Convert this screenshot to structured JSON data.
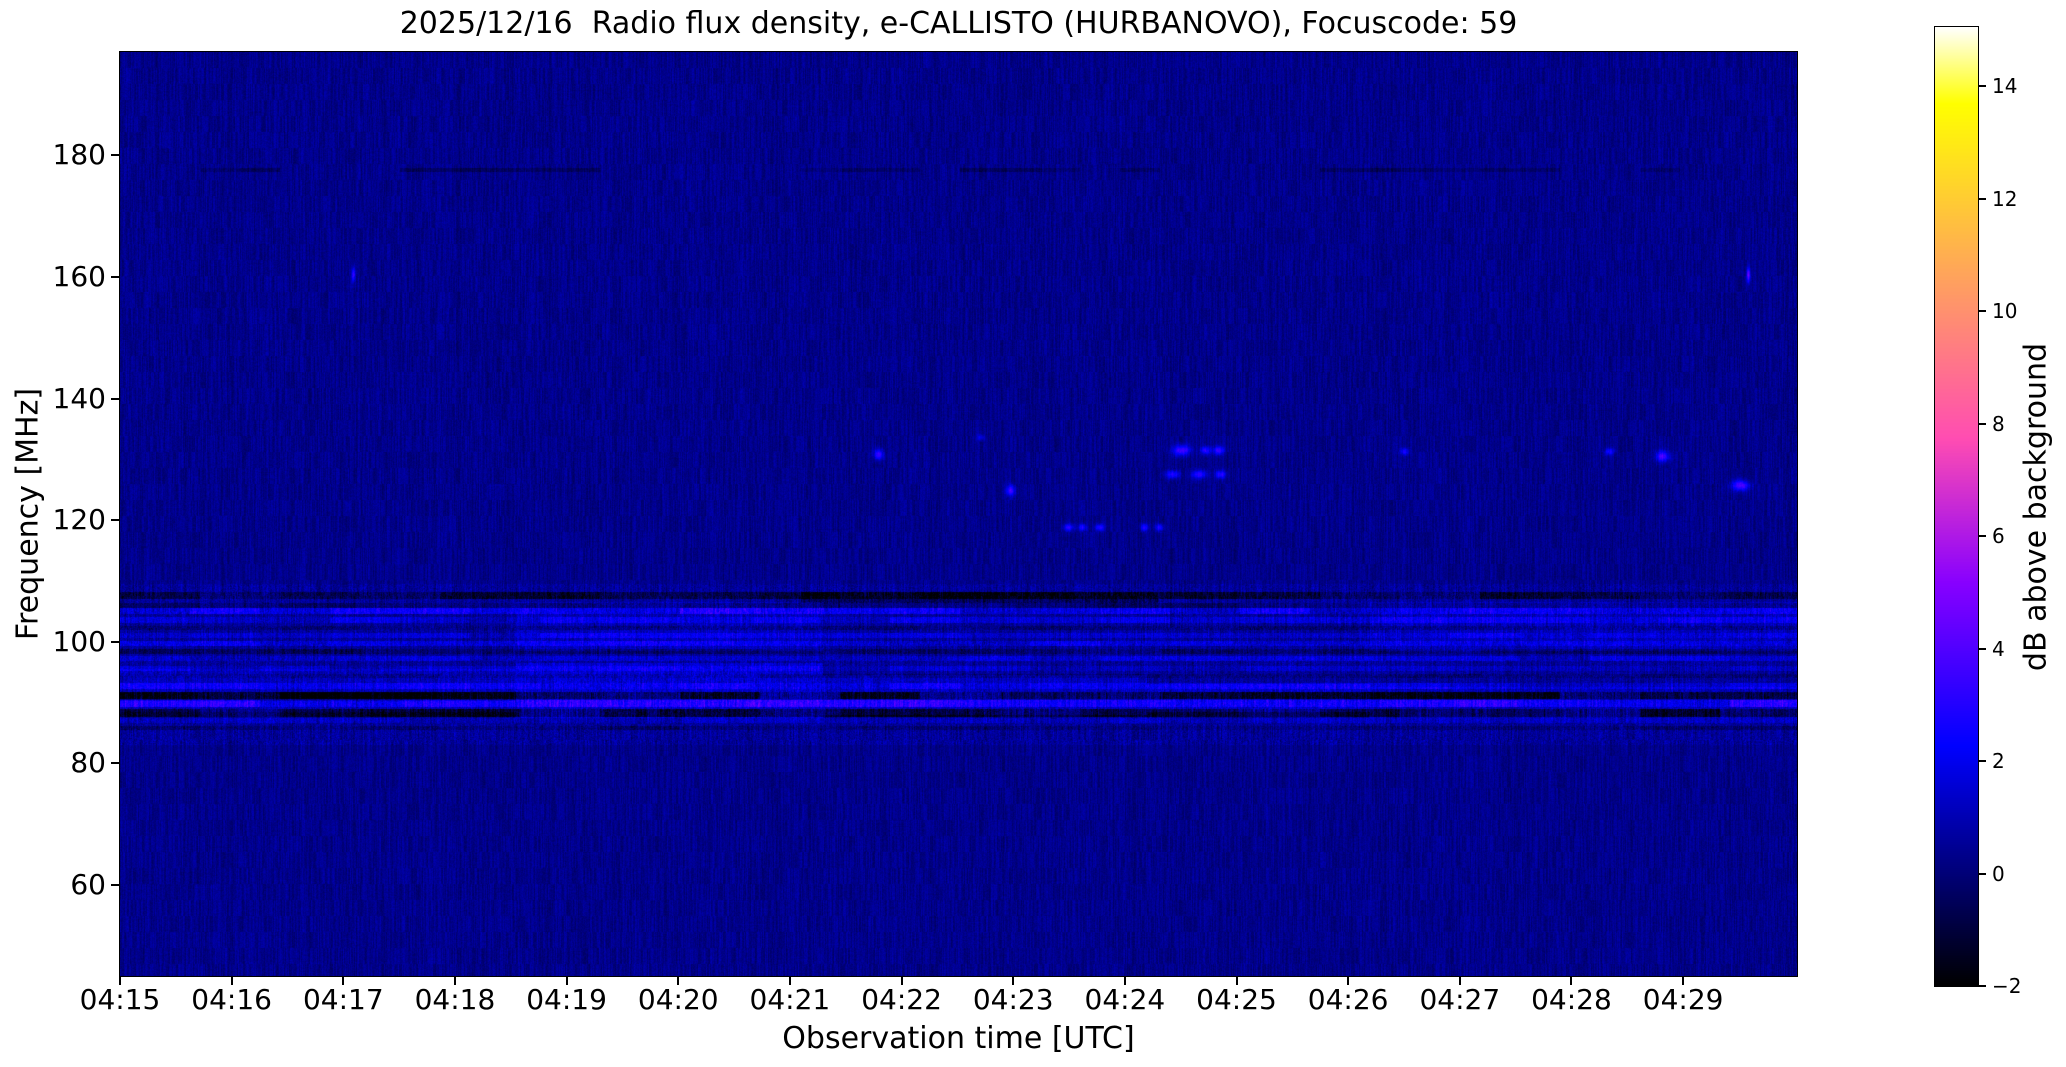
{
  "chart_data": {
    "type": "heatmap",
    "title": "2025/12/16  Radio flux density, e-CALLISTO (HURBANOVO), Focuscode: 59",
    "xlabel": "Observation time [UTC]",
    "ylabel": "Frequency [MHz]",
    "x_tick_labels": [
      "04:15",
      "04:16",
      "04:17",
      "04:18",
      "04:19",
      "04:20",
      "04:21",
      "04:22",
      "04:23",
      "04:24",
      "04:25",
      "04:26",
      "04:27",
      "04:28",
      "04:29"
    ],
    "x_tick_minutes": [
      0,
      1,
      2,
      3,
      4,
      5,
      6,
      7,
      8,
      9,
      10,
      11,
      12,
      13,
      14
    ],
    "x_range_minutes": [
      0,
      15.02
    ],
    "y_ticks_mhz": [
      60,
      80,
      100,
      120,
      140,
      160,
      180
    ],
    "ylim_mhz": [
      45,
      197
    ],
    "grid": false,
    "colorbar": {
      "label": "dB above background",
      "ticks_db": [
        -2,
        0,
        2,
        4,
        6,
        8,
        10,
        12,
        14
      ],
      "range_db": [
        -2,
        15.05
      ],
      "colormap": "gnuplot2",
      "position": "right"
    },
    "background_db": 0.3,
    "noise_amplitude_db": 0.5,
    "features": {
      "fm_broadcast_band": {
        "freq_range_mhz": [
          84,
          108
        ],
        "boost_db": 0.2
      },
      "bright_lines": [
        {
          "f": 105.0,
          "h": 1.0,
          "a": 1.3
        },
        {
          "f": 103.6,
          "h": 0.9,
          "a": 0.9
        },
        {
          "f": 101.0,
          "h": 0.9,
          "a": 0.8
        },
        {
          "f": 99.7,
          "h": 0.9,
          "a": 1.0
        },
        {
          "f": 97.2,
          "h": 0.9,
          "a": 0.8
        },
        {
          "f": 95.6,
          "h": 0.8,
          "a": 0.6
        },
        {
          "f": 92.7,
          "h": 0.9,
          "a": 0.9
        },
        {
          "f": 89.8,
          "h": 1.1,
          "a": 1.4
        },
        {
          "f": 87.0,
          "h": 0.8,
          "a": 0.5
        }
      ],
      "dark_lines": [
        {
          "f": 107.6,
          "h": 1.2,
          "a": -1.2
        },
        {
          "f": 106.0,
          "h": 0.8,
          "a": -0.6
        },
        {
          "f": 102.2,
          "h": 0.7,
          "a": -0.5
        },
        {
          "f": 98.4,
          "h": 0.8,
          "a": -0.7
        },
        {
          "f": 94.3,
          "h": 0.7,
          "a": -0.5
        },
        {
          "f": 91.1,
          "h": 1.2,
          "a": -1.8
        },
        {
          "f": 88.3,
          "h": 1.4,
          "a": -1.6
        },
        {
          "f": 85.8,
          "h": 0.8,
          "a": -0.6
        }
      ],
      "diffuse_patches": [
        {
          "t": [
            0,
            3.55
          ],
          "f": [
            88.5,
            95.5
          ],
          "a": 0.5
        },
        {
          "t": [
            3.55,
            6.3
          ],
          "f": [
            87.5,
            96.5
          ],
          "a": 0.9
        },
        {
          "t": [
            3.55,
            6.3
          ],
          "f": [
            98.5,
            106.5
          ],
          "a": 0.5
        },
        {
          "t": [
            6.3,
            9.2
          ],
          "f": [
            88.0,
            94.5
          ],
          "a": 0.6
        },
        {
          "t": [
            9.2,
            11.2
          ],
          "f": [
            88.5,
            93.0
          ],
          "a": 0.8
        },
        {
          "t": [
            11.2,
            15.02
          ],
          "f": [
            98.5,
            106.5
          ],
          "a": 0.5
        },
        {
          "t": [
            11.2,
            15.02
          ],
          "f": [
            87.5,
            92.5
          ],
          "a": 0.5
        },
        {
          "t": [
            6.1,
            9.3
          ],
          "f": [
            106.3,
            108.2
          ],
          "a": -1.0
        },
        {
          "t": [
            0,
            3.55
          ],
          "f": [
            90.3,
            91.8
          ],
          "a": -0.8
        }
      ],
      "interference_dots": [
        {
          "t": 2.09,
          "f": 160.5,
          "w": 3,
          "hh": 12,
          "a": 3.2
        },
        {
          "t": 6.79,
          "f": 130.8,
          "w": 8,
          "hh": 9,
          "a": 3.4
        },
        {
          "t": 7.7,
          "f": 133.6,
          "w": 6,
          "hh": 5,
          "a": 1.7
        },
        {
          "t": 7.97,
          "f": 125.0,
          "w": 8,
          "hh": 9,
          "a": 3.2
        },
        {
          "t": 8.49,
          "f": 118.8,
          "w": 9,
          "hh": 6,
          "a": 2.8
        },
        {
          "t": 8.62,
          "f": 118.8,
          "w": 7,
          "hh": 6,
          "a": 2.6
        },
        {
          "t": 8.77,
          "f": 118.8,
          "w": 8,
          "hh": 6,
          "a": 2.8
        },
        {
          "t": 9.17,
          "f": 118.8,
          "w": 7,
          "hh": 6,
          "a": 2.6
        },
        {
          "t": 9.31,
          "f": 118.8,
          "w": 7,
          "hh": 6,
          "a": 2.7
        },
        {
          "t": 9.5,
          "f": 131.5,
          "w": 14,
          "hh": 9,
          "a": 3.6
        },
        {
          "t": 9.72,
          "f": 131.5,
          "w": 8,
          "hh": 7,
          "a": 2.9
        },
        {
          "t": 9.83,
          "f": 131.6,
          "w": 9,
          "hh": 7,
          "a": 3.1
        },
        {
          "t": 9.42,
          "f": 127.6,
          "w": 12,
          "hh": 7,
          "a": 2.9
        },
        {
          "t": 9.66,
          "f": 127.6,
          "w": 12,
          "hh": 7,
          "a": 2.9
        },
        {
          "t": 9.85,
          "f": 127.6,
          "w": 9,
          "hh": 7,
          "a": 2.9
        },
        {
          "t": 11.5,
          "f": 131.4,
          "w": 7,
          "hh": 6,
          "a": 2.3
        },
        {
          "t": 13.34,
          "f": 131.4,
          "w": 8,
          "hh": 6,
          "a": 2.4
        },
        {
          "t": 13.81,
          "f": 130.6,
          "w": 11,
          "hh": 9,
          "a": 3.7
        },
        {
          "t": 14.51,
          "f": 125.8,
          "w": 14,
          "hh": 9,
          "a": 3.8
        },
        {
          "t": 14.58,
          "f": 160.3,
          "w": 3,
          "hh": 13,
          "a": 4.2
        }
      ],
      "dark_dash_row_mhz": 177.6
    },
    "colors": {
      "figure_background": "#ffffff",
      "plot_background": "#0a0a8c",
      "axis_color": "#000000"
    }
  }
}
